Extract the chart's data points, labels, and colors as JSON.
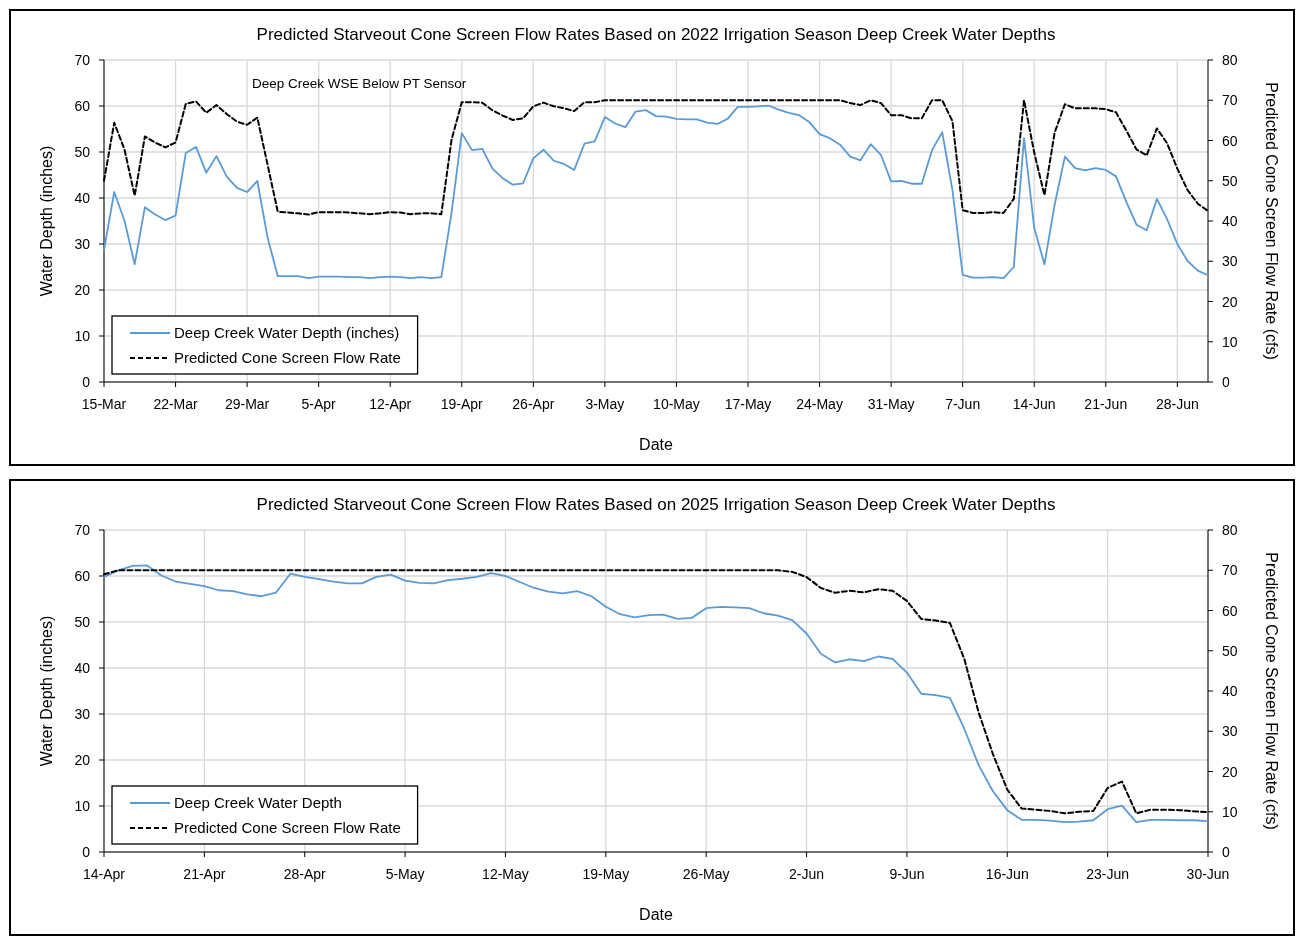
{
  "chart_data": [
    {
      "type": "line",
      "title": "Predicted Starveout Cone Screen Flow Rates Based on 2022 Irrigation Season Deep Creek Water Depths",
      "xlabel": "Date",
      "ylabel": "Water Depth (inches)",
      "y2label": "Predicted Cone Screen Flow Rate (cfs)",
      "annotations": [
        "Deep Creek WSE Below PT Sensor"
      ],
      "x": [
        "2022-03-15",
        "2022-03-16",
        "2022-03-17",
        "2022-03-18",
        "2022-03-19",
        "2022-03-20",
        "2022-03-21",
        "2022-03-22",
        "2022-03-23",
        "2022-03-24",
        "2022-03-25",
        "2022-03-26",
        "2022-03-27",
        "2022-03-28",
        "2022-03-29",
        "2022-03-30",
        "2022-03-31",
        "2022-04-01",
        "2022-04-02",
        "2022-04-03",
        "2022-04-04",
        "2022-04-05",
        "2022-04-06",
        "2022-04-07",
        "2022-04-08",
        "2022-04-09",
        "2022-04-10",
        "2022-04-11",
        "2022-04-12",
        "2022-04-13",
        "2022-04-14",
        "2022-04-15",
        "2022-04-16",
        "2022-04-17",
        "2022-04-18",
        "2022-04-19",
        "2022-04-20",
        "2022-04-21",
        "2022-04-22",
        "2022-04-23",
        "2022-04-24",
        "2022-04-25",
        "2022-04-26",
        "2022-04-27",
        "2022-04-28",
        "2022-04-29",
        "2022-04-30",
        "2022-05-01",
        "2022-05-02",
        "2022-05-03",
        "2022-05-04",
        "2022-05-05",
        "2022-05-06",
        "2022-05-07",
        "2022-05-08",
        "2022-05-09",
        "2022-05-10",
        "2022-05-11",
        "2022-05-12",
        "2022-05-13",
        "2022-05-14",
        "2022-05-15",
        "2022-05-16",
        "2022-05-17",
        "2022-05-18",
        "2022-05-19",
        "2022-05-20",
        "2022-05-21",
        "2022-05-22",
        "2022-05-23",
        "2022-05-24",
        "2022-05-25",
        "2022-05-26",
        "2022-05-27",
        "2022-05-28",
        "2022-05-29",
        "2022-05-30",
        "2022-05-31",
        "2022-06-01",
        "2022-06-02",
        "2022-06-03",
        "2022-06-04",
        "2022-06-05",
        "2022-06-06",
        "2022-06-07",
        "2022-06-08",
        "2022-06-09",
        "2022-06-10",
        "2022-06-11",
        "2022-06-12",
        "2022-06-13",
        "2022-06-14",
        "2022-06-15",
        "2022-06-16",
        "2022-06-17",
        "2022-06-18",
        "2022-06-19",
        "2022-06-20",
        "2022-06-21",
        "2022-06-22",
        "2022-06-23",
        "2022-06-24",
        "2022-06-25",
        "2022-06-26",
        "2022-06-27",
        "2022-06-28",
        "2022-06-29",
        "2022-06-30",
        "2022-07-01"
      ],
      "series": [
        {
          "name": "Deep Creek Water Depth (inches)",
          "color": "#5b9bd5",
          "line_style": "solid",
          "values": [
            28.7,
            41.3,
            35.1,
            25.6,
            38,
            36.4,
            35.2,
            36.2,
            49.8,
            51.1,
            45.5,
            49.1,
            44.7,
            42.2,
            41.3,
            43.7,
            31.4,
            23,
            23,
            23,
            22.6,
            22.9,
            22.9,
            22.9,
            22.8,
            22.8,
            22.6,
            22.8,
            22.9,
            22.8,
            22.6,
            22.8,
            22.6,
            22.8,
            36.8,
            54.1,
            50.4,
            50.7,
            46.4,
            44.3,
            42.9,
            43.2,
            48.6,
            50.5,
            48.1,
            47.4,
            46.1,
            51.8,
            52.3,
            57.6,
            56.2,
            55.4,
            58.8,
            59.1,
            57.8,
            57.7,
            57.2,
            57.1,
            57.1,
            56.4,
            56.1,
            57.2,
            59.8,
            59.8,
            59.9,
            60.1,
            59.2,
            58.5,
            58,
            56.5,
            53.9,
            53,
            51.6,
            49,
            48.2,
            51.7,
            49.4,
            43.6,
            43.7,
            43.1,
            43.1,
            50.4,
            54.3,
            41.7,
            23.3,
            22.7,
            22.7,
            22.8,
            22.6,
            25,
            53,
            33.5,
            25.6,
            38.6,
            49,
            46.5,
            46,
            46.5,
            46.1,
            44.7,
            39.2,
            34.2,
            33,
            39.8,
            35.4,
            30,
            26.3,
            24.2,
            23.2
          ]
        },
        {
          "name": "Predicted Cone Screen Flow Rate",
          "color": "#000000",
          "line_style": "dashed",
          "axis": "y2",
          "values": [
            50,
            64.4,
            57.8,
            46.3,
            61,
            59.5,
            58.3,
            59.5,
            69.1,
            69.7,
            66.9,
            68.8,
            66.6,
            64.7,
            63.9,
            65.7,
            54,
            42.3,
            42.1,
            41.9,
            41.6,
            42.2,
            42.2,
            42.2,
            42.1,
            41.9,
            41.7,
            41.9,
            42.2,
            42.1,
            41.7,
            41.9,
            41.9,
            41.7,
            60.2,
            69.5,
            69.5,
            69.4,
            67.5,
            66.2,
            65.1,
            65.5,
            68.5,
            69.4,
            68.5,
            68,
            67.3,
            69.5,
            69.5,
            70,
            70,
            70,
            70,
            70,
            70,
            70,
            70,
            70,
            70,
            70,
            70,
            70,
            70,
            70,
            70,
            70,
            70,
            70,
            70,
            70,
            70,
            70,
            70,
            69.3,
            68.8,
            70,
            69.3,
            66.3,
            66.3,
            65.5,
            65.5,
            70,
            70,
            64.8,
            42.7,
            42,
            42,
            42.2,
            42,
            45.5,
            70,
            57,
            46.4,
            62,
            69,
            68,
            68,
            68,
            67.8,
            67,
            62.5,
            57.8,
            56.3,
            63,
            59.3,
            53,
            47.7,
            44.3,
            42.5
          ]
        }
      ],
      "xlim": [
        "2022-03-15",
        "2022-07-01"
      ],
      "xticks": [
        {
          "value": "2022-03-15",
          "label": "15-Mar"
        },
        {
          "value": "2022-03-22",
          "label": "22-Mar"
        },
        {
          "value": "2022-03-29",
          "label": "29-Mar"
        },
        {
          "value": "2022-04-05",
          "label": "5-Apr"
        },
        {
          "value": "2022-04-12",
          "label": "12-Apr"
        },
        {
          "value": "2022-04-19",
          "label": "19-Apr"
        },
        {
          "value": "2022-04-26",
          "label": "26-Apr"
        },
        {
          "value": "2022-05-03",
          "label": "3-May"
        },
        {
          "value": "2022-05-10",
          "label": "10-May"
        },
        {
          "value": "2022-05-17",
          "label": "17-May"
        },
        {
          "value": "2022-05-24",
          "label": "24-May"
        },
        {
          "value": "2022-05-31",
          "label": "31-May"
        },
        {
          "value": "2022-06-07",
          "label": "7-Jun"
        },
        {
          "value": "2022-06-14",
          "label": "14-Jun"
        },
        {
          "value": "2022-06-21",
          "label": "21-Jun"
        },
        {
          "value": "2022-06-28",
          "label": "28-Jun"
        }
      ],
      "ylim": [
        0,
        70
      ],
      "yticks": [
        0,
        10,
        20,
        30,
        40,
        50,
        60,
        70
      ],
      "y2lim": [
        0,
        80
      ],
      "y2ticks": [
        0,
        10,
        20,
        30,
        40,
        50,
        60,
        70,
        80
      ],
      "grid": true,
      "legend": "bottom left"
    },
    {
      "type": "line",
      "title": "Predicted Starveout Cone Screen Flow Rates Based on 2025 Irrigation Season Deep Creek Water Depths",
      "xlabel": "Date",
      "ylabel": "Water Depth (inches)",
      "y2label": "Predicted Cone Screen Flow Rate (cfs)",
      "x": [
        "2025-04-14",
        "2025-04-15",
        "2025-04-16",
        "2025-04-17",
        "2025-04-18",
        "2025-04-19",
        "2025-04-20",
        "2025-04-21",
        "2025-04-22",
        "2025-04-23",
        "2025-04-24",
        "2025-04-25",
        "2025-04-26",
        "2025-04-27",
        "2025-04-28",
        "2025-04-29",
        "2025-04-30",
        "2025-05-01",
        "2025-05-02",
        "2025-05-03",
        "2025-05-04",
        "2025-05-05",
        "2025-05-06",
        "2025-05-07",
        "2025-05-08",
        "2025-05-09",
        "2025-05-10",
        "2025-05-11",
        "2025-05-12",
        "2025-05-13",
        "2025-05-14",
        "2025-05-15",
        "2025-05-16",
        "2025-05-17",
        "2025-05-18",
        "2025-05-19",
        "2025-05-20",
        "2025-05-21",
        "2025-05-22",
        "2025-05-23",
        "2025-05-24",
        "2025-05-25",
        "2025-05-26",
        "2025-05-27",
        "2025-05-28",
        "2025-05-29",
        "2025-05-30",
        "2025-05-31",
        "2025-06-01",
        "2025-06-02",
        "2025-06-03",
        "2025-06-04",
        "2025-06-05",
        "2025-06-06",
        "2025-06-07",
        "2025-06-08",
        "2025-06-09",
        "2025-06-10",
        "2025-06-11",
        "2025-06-12",
        "2025-06-13",
        "2025-06-14",
        "2025-06-15",
        "2025-06-16",
        "2025-06-17",
        "2025-06-18",
        "2025-06-19",
        "2025-06-20",
        "2025-06-21",
        "2025-06-22",
        "2025-06-23",
        "2025-06-24",
        "2025-06-25",
        "2025-06-26",
        "2025-06-27",
        "2025-06-28",
        "2025-06-29",
        "2025-06-30"
      ],
      "series": [
        {
          "name": "Deep Creek Water Depth",
          "color": "#5b9bd5",
          "line_style": "solid",
          "values": [
            59.8,
            61.2,
            62.2,
            62.3,
            60.1,
            58.8,
            58.3,
            57.8,
            56.9,
            56.7,
            56,
            55.6,
            56.4,
            60.5,
            59.8,
            59.3,
            58.8,
            58.4,
            58.4,
            59.8,
            60.3,
            59,
            58.5,
            58.4,
            59.1,
            59.4,
            59.8,
            60.6,
            60,
            58.7,
            57.4,
            56.6,
            56.2,
            56.7,
            55.6,
            53.3,
            51.7,
            51,
            51.5,
            51.6,
            50.7,
            50.9,
            53,
            53.3,
            53.2,
            53,
            51.9,
            51.4,
            50.4,
            47.5,
            43.1,
            41.2,
            41.9,
            41.5,
            42.5,
            42,
            39,
            34.4,
            34.1,
            33.5,
            26.8,
            18.9,
            13.2,
            9.1,
            7,
            7,
            6.8,
            6.5,
            6.6,
            6.9,
            9.3,
            10.1,
            6.5,
            7,
            7,
            6.9,
            6.9,
            6.7
          ]
        },
        {
          "name": "Predicted Cone Screen Flow Rate",
          "color": "#000000",
          "line_style": "dashed",
          "axis": "y2",
          "values": [
            69,
            70,
            70,
            70,
            70,
            70,
            70,
            70,
            70,
            70,
            70,
            70,
            70,
            70,
            70,
            70,
            70,
            70,
            70,
            70,
            70,
            70,
            70,
            70,
            70,
            70,
            70,
            70,
            70,
            70,
            70,
            70,
            70,
            70,
            70,
            70,
            70,
            70,
            70,
            70,
            70,
            70,
            70,
            70,
            70,
            70,
            70,
            70,
            69.6,
            68.3,
            65.6,
            64.4,
            64.9,
            64.5,
            65.3,
            64.9,
            62.4,
            57.9,
            57.5,
            56.9,
            48,
            34.7,
            24.3,
            15.5,
            10.8,
            10.5,
            10.2,
            9.6,
            10,
            10.2,
            15.9,
            17.5,
            9.6,
            10.5,
            10.5,
            10.4,
            10.1,
            9.9
          ]
        }
      ],
      "xlim": [
        "2025-04-14",
        "2025-06-30"
      ],
      "xticks": [
        {
          "value": "2025-04-14",
          "label": "14-Apr"
        },
        {
          "value": "2025-04-21",
          "label": "21-Apr"
        },
        {
          "value": "2025-04-28",
          "label": "28-Apr"
        },
        {
          "value": "2025-05-05",
          "label": "5-May"
        },
        {
          "value": "2025-05-12",
          "label": "12-May"
        },
        {
          "value": "2025-05-19",
          "label": "19-May"
        },
        {
          "value": "2025-05-26",
          "label": "26-May"
        },
        {
          "value": "2025-06-02",
          "label": "2-Jun"
        },
        {
          "value": "2025-06-09",
          "label": "9-Jun"
        },
        {
          "value": "2025-06-16",
          "label": "16-Jun"
        },
        {
          "value": "2025-06-23",
          "label": "23-Jun"
        },
        {
          "value": "2025-06-30",
          "label": "30-Jun"
        }
      ],
      "ylim": [
        0,
        70
      ],
      "yticks": [
        0,
        10,
        20,
        30,
        40,
        50,
        60,
        70
      ],
      "y2lim": [
        0,
        80
      ],
      "y2ticks": [
        0,
        10,
        20,
        30,
        40,
        50,
        60,
        70,
        80
      ],
      "grid": true,
      "legend": "bottom left"
    }
  ]
}
